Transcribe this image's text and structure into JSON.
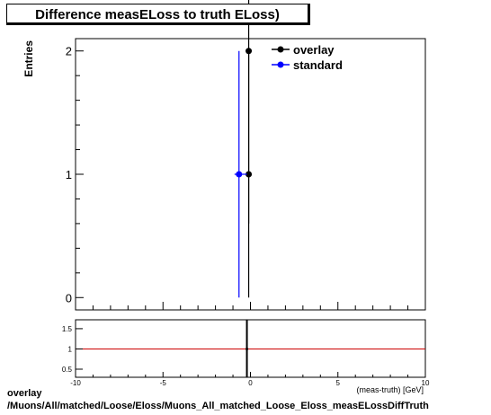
{
  "chart_data": [
    {
      "type": "scatter",
      "title": "Difference measELoss to truth ELoss)",
      "ylabel": "Entries",
      "xlim": [
        -10,
        10
      ],
      "ylim": [
        -0.1,
        2.1
      ],
      "yticks": [
        0,
        1,
        2
      ],
      "legend_position": "top-right",
      "series": [
        {
          "name": "overlay",
          "color": "#000000",
          "points": [
            {
              "x": -0.1,
              "y": 2,
              "yerr_low": 1.4,
              "yerr_high": 0.95
            },
            {
              "x": -0.1,
              "y": 1,
              "yerr_low": 1.0,
              "yerr_high": 1.0
            }
          ]
        },
        {
          "name": "standard",
          "color": "#0000ff",
          "points": [
            {
              "x": -0.5,
              "y": 1,
              "yerr_low": 1.0,
              "yerr_high": 1.0
            }
          ]
        }
      ]
    },
    {
      "type": "line",
      "xlim": [
        -10,
        10
      ],
      "ylim": [
        0.3,
        1.72
      ],
      "xticks": [
        -10,
        -5,
        0,
        5,
        10
      ],
      "yticks": [
        0.5,
        1,
        1.5
      ],
      "ytick_labels": [
        "0.5",
        "1",
        "1.5"
      ],
      "xlabel": "(meas-truth) [GeV]",
      "reference_line": {
        "y": 1,
        "color": "#cc0000"
      },
      "ratio_points": [
        {
          "x": -0.1,
          "y": 1
        }
      ]
    }
  ],
  "footer": {
    "line1": "overlay",
    "line2": "/Muons/All/matched/Loose/Eloss/Muons_All_matched_Loose_Eloss_measELossDiffTruth"
  }
}
